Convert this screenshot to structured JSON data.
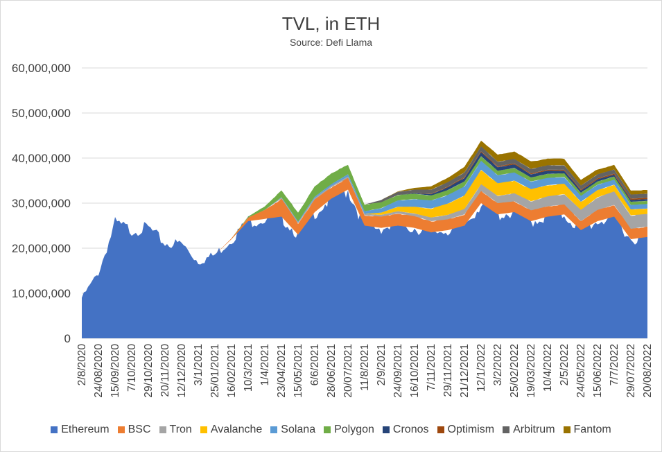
{
  "chart_data": {
    "type": "area",
    "stacked": true,
    "title": "TVL, in ETH",
    "subtitle": "Source: Defi Llama",
    "xlabel": "",
    "ylabel": "",
    "ylim": [
      0,
      60000000
    ],
    "y_ticks": [
      0,
      10000000,
      20000000,
      30000000,
      40000000,
      50000000,
      60000000
    ],
    "y_tick_labels": [
      "0",
      "10,000,000",
      "20,000,000",
      "30,000,000",
      "40,000,000",
      "50,000,000",
      "60,000,000"
    ],
    "x_tick_labels": [
      "2/8/2020",
      "24/08/2020",
      "15/09/2020",
      "7/10/2020",
      "29/10/2020",
      "20/11/2020",
      "12/12/2020",
      "3/1/2021",
      "25/01/2021",
      "16/02/2021",
      "10/3/2021",
      "1/4/2021",
      "23/04/2021",
      "15/05/2021",
      "6/6/2021",
      "28/06/2021",
      "20/07/2021",
      "11/8/2021",
      "2/9/2021",
      "24/09/2021",
      "16/10/2021",
      "7/11/2021",
      "29/11/2021",
      "21/12/2021",
      "12/1/2022",
      "3/2/2022",
      "25/02/2022",
      "19/03/2022",
      "10/4/2022",
      "2/5/2022",
      "24/05/2022",
      "15/06/2022",
      "7/7/2022",
      "29/07/2022",
      "20/08/2022"
    ],
    "legend_position": "bottom",
    "series": [
      {
        "name": "Ethereum",
        "color": "#4472C4",
        "values": [
          9000000,
          14500000,
          25500000,
          24000000,
          24500000,
          21000000,
          21000000,
          17000000,
          18500000,
          22000000,
          26000000,
          26500000,
          27000000,
          23000000,
          28000000,
          31000000,
          33000000,
          25000000,
          24500000,
          25000000,
          24500000,
          23500000,
          24000000,
          25000000,
          30000000,
          27500000,
          28000000,
          26000000,
          27000000,
          27500000,
          24000000,
          26000000,
          27000000,
          22000000,
          22500000
        ]
      },
      {
        "name": "BSC",
        "color": "#ED7D31",
        "values": [
          0,
          0,
          0,
          0,
          0,
          0,
          0,
          0,
          0,
          200000,
          800000,
          2000000,
          4000000,
          2500000,
          2800000,
          2500000,
          2600000,
          2300000,
          2500000,
          2700000,
          2600000,
          2500000,
          2400000,
          2500000,
          2700000,
          2500000,
          2400000,
          2400000,
          2300000,
          2200000,
          2000000,
          2500000,
          2600000,
          2300000,
          2300000
        ]
      },
      {
        "name": "Tron",
        "color": "#A5A5A5",
        "values": [
          0,
          0,
          0,
          0,
          0,
          0,
          0,
          0,
          0,
          0,
          0,
          0,
          200000,
          200000,
          300000,
          300000,
          300000,
          300000,
          400000,
          500000,
          600000,
          800000,
          1000000,
          1200000,
          1500000,
          1600000,
          1800000,
          2000000,
          2200000,
          2300000,
          2500000,
          2800000,
          3000000,
          3000000,
          2800000
        ]
      },
      {
        "name": "Avalanche",
        "color": "#FFC000",
        "values": [
          0,
          0,
          0,
          0,
          0,
          0,
          0,
          0,
          0,
          0,
          0,
          0,
          0,
          0,
          0,
          0,
          0,
          0,
          500000,
          1000000,
          1500000,
          2000000,
          2500000,
          3000000,
          3200000,
          2800000,
          2800000,
          2700000,
          2500000,
          2300000,
          1800000,
          1600000,
          1500000,
          1300000,
          1200000
        ]
      },
      {
        "name": "Solana",
        "color": "#5B9BD5",
        "values": [
          0,
          0,
          0,
          0,
          0,
          0,
          0,
          0,
          0,
          0,
          0,
          0,
          100000,
          200000,
          300000,
          400000,
          500000,
          600000,
          1000000,
          1400000,
          1700000,
          1800000,
          1900000,
          2000000,
          2000000,
          1800000,
          1800000,
          1700000,
          1600000,
          1500000,
          1300000,
          1200000,
          1100000,
          1000000,
          1000000
        ]
      },
      {
        "name": "Polygon",
        "color": "#70AD47",
        "values": [
          0,
          0,
          0,
          0,
          0,
          0,
          0,
          0,
          0,
          0,
          200000,
          800000,
          1500000,
          2000000,
          2200000,
          2500000,
          2000000,
          1500000,
          1300000,
          1200000,
          1200000,
          1100000,
          1100000,
          1100000,
          1000000,
          1000000,
          1000000,
          900000,
          900000,
          800000,
          700000,
          700000,
          700000,
          700000,
          700000
        ]
      },
      {
        "name": "Cronos",
        "color": "#264478",
        "values": [
          0,
          0,
          0,
          0,
          0,
          0,
          0,
          0,
          0,
          0,
          0,
          0,
          0,
          0,
          0,
          0,
          0,
          0,
          0,
          0,
          100000,
          300000,
          600000,
          800000,
          900000,
          800000,
          800000,
          700000,
          700000,
          600000,
          500000,
          500000,
          400000,
          400000,
          400000
        ]
      },
      {
        "name": "Optimism",
        "color": "#9E480E",
        "values": [
          0,
          0,
          0,
          0,
          0,
          0,
          0,
          0,
          0,
          0,
          0,
          0,
          0,
          0,
          0,
          0,
          0,
          0,
          0,
          0,
          0,
          100000,
          150000,
          200000,
          200000,
          200000,
          200000,
          200000,
          200000,
          200000,
          200000,
          200000,
          250000,
          300000,
          300000
        ]
      },
      {
        "name": "Arbitrum",
        "color": "#636363",
        "values": [
          0,
          0,
          0,
          0,
          0,
          0,
          0,
          0,
          0,
          0,
          0,
          0,
          0,
          0,
          0,
          0,
          0,
          0,
          500000,
          700000,
          800000,
          900000,
          1000000,
          1000000,
          1100000,
          1000000,
          1000000,
          1000000,
          1000000,
          1000000,
          900000,
          900000,
          900000,
          900000,
          900000
        ]
      },
      {
        "name": "Fantom",
        "color": "#997300",
        "values": [
          0,
          0,
          0,
          0,
          0,
          0,
          0,
          0,
          0,
          0,
          0,
          0,
          0,
          0,
          0,
          0,
          0,
          0,
          0,
          100000,
          400000,
          700000,
          1000000,
          1200000,
          1300000,
          1500000,
          1700000,
          1600000,
          1500000,
          1400000,
          1200000,
          1100000,
          1000000,
          900000,
          800000
        ]
      }
    ]
  }
}
